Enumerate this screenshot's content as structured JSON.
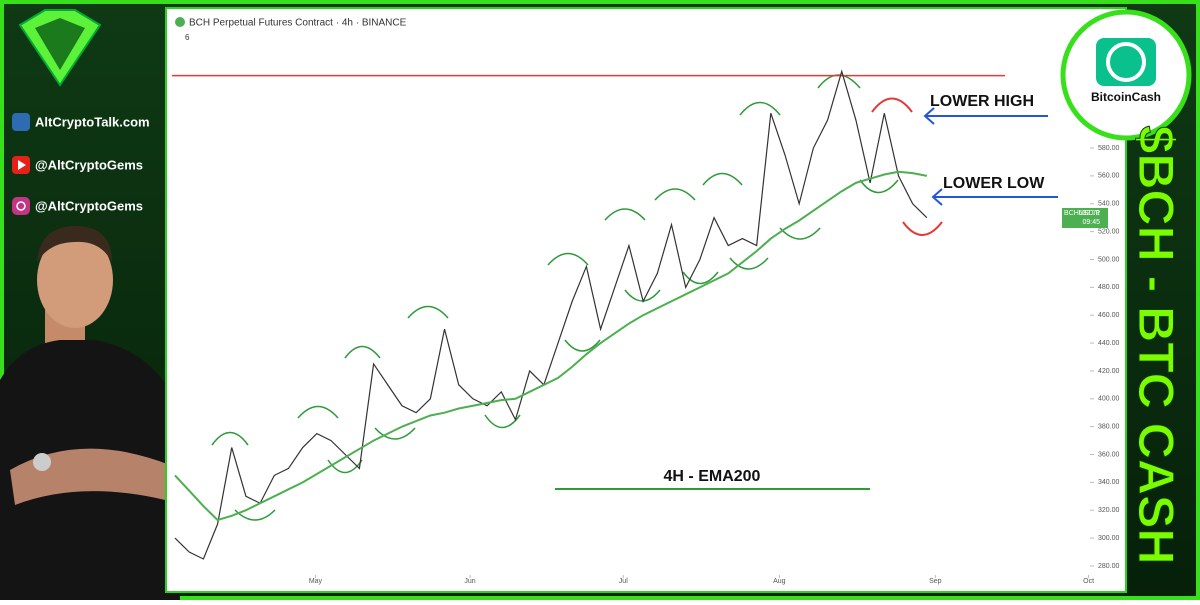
{
  "chart_data": {
    "type": "line",
    "title": "BCH Perpetual Futures Contract · 4h · BINANCE",
    "indicator_count": "6",
    "xlim": [
      0,
      64.5
    ],
    "xticks": [
      {
        "value": 9.9,
        "label": "May"
      },
      {
        "value": 20.8,
        "label": "Jun"
      },
      {
        "value": 31.6,
        "label": "Jul"
      },
      {
        "value": 42.6,
        "label": "Aug"
      },
      {
        "value": 53.6,
        "label": "Sep"
      },
      {
        "value": 64.4,
        "label": "Oct"
      }
    ],
    "ylim": [
      273.5,
      675.5
    ],
    "yticks": [
      {
        "value": 280,
        "label": "280.00"
      },
      {
        "value": 300,
        "label": "300.00"
      },
      {
        "value": 320,
        "label": "320.00"
      },
      {
        "value": 340,
        "label": "340.00"
      },
      {
        "value": 360,
        "label": "360.00"
      },
      {
        "value": 380,
        "label": "380.00"
      },
      {
        "value": 400,
        "label": "400.00"
      },
      {
        "value": 420,
        "label": "420.00"
      },
      {
        "value": 440,
        "label": "440.00"
      },
      {
        "value": 460,
        "label": "460.00"
      },
      {
        "value": 480,
        "label": "480.00"
      },
      {
        "value": 500,
        "label": "500.00"
      },
      {
        "value": 520,
        "label": "520.00"
      },
      {
        "value": 540,
        "label": "540.00"
      },
      {
        "value": 560,
        "label": "560.00"
      },
      {
        "value": 580,
        "label": "580.00"
      }
    ],
    "x": [
      0,
      1,
      2,
      3,
      4,
      5,
      6,
      7,
      8,
      9,
      10,
      11,
      12,
      13,
      14,
      15,
      16,
      17,
      18,
      19,
      20,
      21,
      22,
      23,
      24,
      25,
      26,
      27,
      28,
      29,
      30,
      31,
      32,
      33,
      34,
      35,
      36,
      37,
      38,
      39,
      40,
      41,
      42,
      43,
      44,
      45,
      46,
      47,
      48,
      49,
      50,
      51,
      52,
      53
    ],
    "series": [
      {
        "color": "#333333",
        "values": [
          300,
          290,
          285,
          310,
          365,
          330,
          325,
          345,
          350,
          365,
          375,
          370,
          360,
          350,
          425,
          410,
          395,
          390,
          400,
          450,
          410,
          400,
          395,
          405,
          385,
          420,
          410,
          440,
          470,
          495,
          450,
          480,
          510,
          470,
          490,
          525,
          480,
          500,
          530,
          510,
          515,
          510,
          605,
          575,
          540,
          580,
          600,
          635,
          600,
          555,
          605,
          560,
          540,
          530
        ]
      },
      {
        "color": "#4caf50",
        "values": [
          345,
          334,
          323,
          313,
          316,
          320,
          325,
          330,
          335,
          340,
          346,
          352,
          358,
          364,
          370,
          375,
          380,
          384,
          388,
          390,
          393,
          395,
          397,
          399,
          400,
          405,
          410,
          415,
          423,
          432,
          440,
          447,
          454,
          460,
          465,
          470,
          475,
          480,
          485,
          490,
          498,
          506,
          515,
          522,
          528,
          535,
          542,
          549,
          555,
          558,
          561,
          563,
          562,
          560
        ]
      }
    ],
    "hlines": [
      {
        "value": 632,
        "color": "#e53935"
      }
    ],
    "last_price": {
      "symbol": "BCHUSD.P",
      "value": 532.71,
      "time": "09:45"
    },
    "annotations": [
      "LOWER HIGH",
      "LOWER LOW",
      "4H - EMA200"
    ]
  },
  "sidebar": {
    "site": "AltCryptoTalk.com",
    "youtube": "@AltCryptoGems",
    "instagram": "@AltCryptoGems"
  },
  "brand": {
    "coin": "BitcoinCash",
    "headline": "$BCH - BTC CASH"
  }
}
